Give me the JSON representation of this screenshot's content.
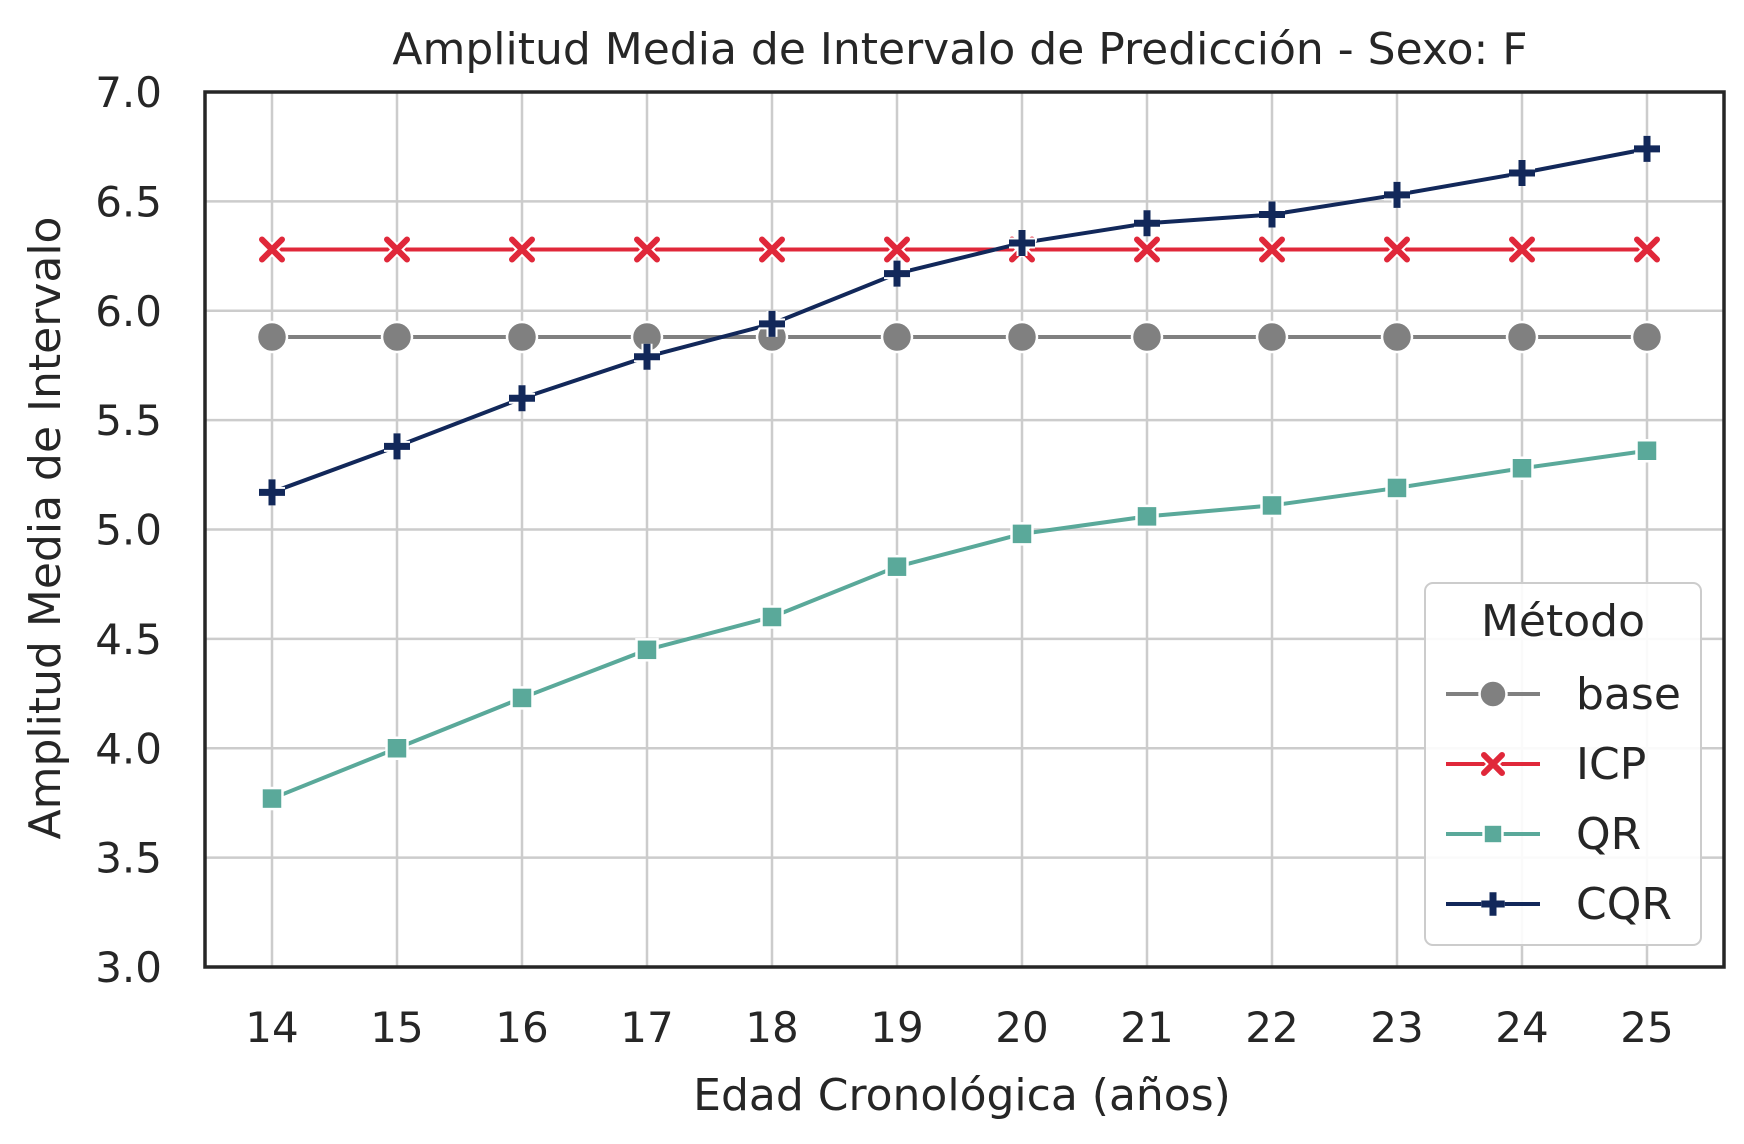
{
  "chart_data": {
    "type": "line",
    "title": "Amplitud Media de Intervalo de Predicción - Sexo: F",
    "xlabel": "Edad Cronológica (años)",
    "ylabel": "Amplitud Media de Intervalo",
    "x": [
      14,
      15,
      16,
      17,
      18,
      19,
      20,
      21,
      22,
      23,
      24,
      25
    ],
    "xticks": [
      "14",
      "15",
      "16",
      "17",
      "18",
      "19",
      "20",
      "21",
      "22",
      "23",
      "24",
      "25"
    ],
    "ylim": [
      3.0,
      7.0
    ],
    "yticks": [
      "3.0",
      "3.5",
      "4.0",
      "4.5",
      "5.0",
      "5.5",
      "6.0",
      "6.5",
      "7.0"
    ],
    "grid": true,
    "legend": {
      "title": "Método",
      "placement": "lower-right"
    },
    "series": [
      {
        "name": "base",
        "color": "#808080",
        "marker": "circle",
        "values": [
          5.88,
          5.88,
          5.88,
          5.88,
          5.88,
          5.88,
          5.88,
          5.88,
          5.88,
          5.88,
          5.88,
          5.88
        ]
      },
      {
        "name": "ICP",
        "color": "#e0283a",
        "marker": "x",
        "values": [
          6.28,
          6.28,
          6.28,
          6.28,
          6.28,
          6.28,
          6.28,
          6.28,
          6.28,
          6.28,
          6.28,
          6.28
        ]
      },
      {
        "name": "QR",
        "color": "#5aa99a",
        "marker": "square",
        "values": [
          3.77,
          4.0,
          4.23,
          4.45,
          4.6,
          4.83,
          4.98,
          5.06,
          5.11,
          5.19,
          5.28,
          5.36
        ]
      },
      {
        "name": "CQR",
        "color": "#12285a",
        "marker": "plus",
        "values": [
          5.17,
          5.38,
          5.6,
          5.79,
          5.94,
          6.17,
          6.31,
          6.4,
          6.44,
          6.53,
          6.63,
          6.74
        ]
      }
    ]
  }
}
